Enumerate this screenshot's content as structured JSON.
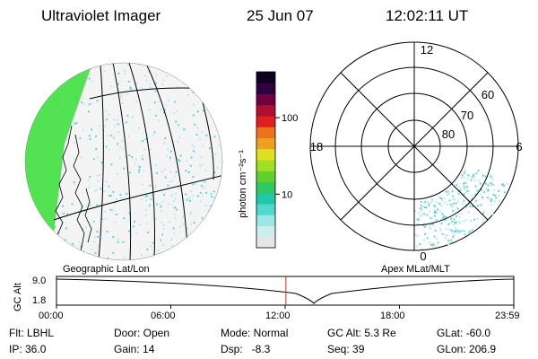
{
  "header": {
    "instrument": "Ultraviolet Imager",
    "date": "25 Jun 07",
    "time": "12:02:11 UT"
  },
  "colorbar": {
    "label": "photon cm⁻²s⁻¹",
    "ticks": [
      {
        "label": "100",
        "value": 100
      },
      {
        "label": "10",
        "value": 10
      }
    ],
    "colors": [
      "#e6e6e6",
      "#cdeeee",
      "#9be6e6",
      "#50d8d0",
      "#20c8a8",
      "#30c860",
      "#60d030",
      "#a0e020",
      "#e0e020",
      "#f0a020",
      "#f07020",
      "#e02020",
      "#b01030",
      "#700040",
      "#300040",
      "#100020"
    ]
  },
  "left_map": {
    "caption": "Geographic Lat/Lon",
    "dot_color": "#5fd8d8",
    "edge_color": "#40e040"
  },
  "right_map": {
    "caption": "Apex MLat/MLT",
    "mlt_labels": {
      "top": "12",
      "left": "18",
      "right": "6",
      "bottom": "0"
    },
    "mlat_labels": [
      "60",
      "70",
      "80"
    ]
  },
  "timeline": {
    "ylabel": "GC Alt",
    "y_ticks": [
      "9.0",
      "1.8"
    ],
    "x_ticks": [
      "00:00",
      "06:00",
      "12:00",
      "18:00",
      "23:59"
    ],
    "current_time_hours": 12.04,
    "marker_color": "#c03030"
  },
  "info": {
    "row1": [
      "Flt: LBHL",
      "Door: Open",
      "Mode: Normal",
      "GC Alt: 5.3 Re",
      "GLat: -60.0"
    ],
    "row2": [
      "IP: 36.0",
      "Gain: 14",
      "Dsp:   -8.3",
      "Seq: 39",
      "GLon: 206.9"
    ]
  }
}
